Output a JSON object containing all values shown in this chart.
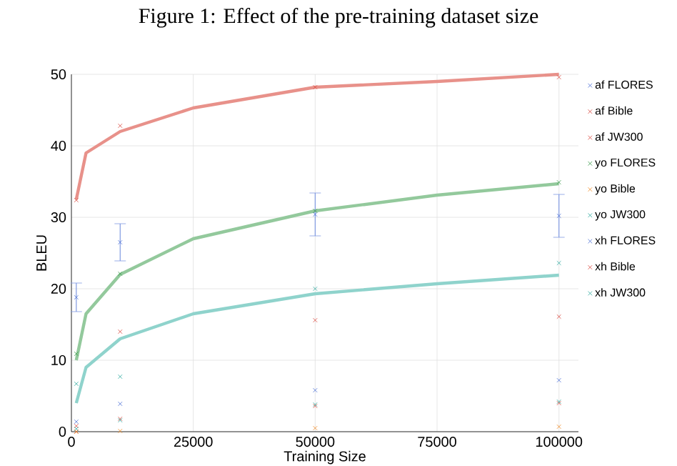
{
  "chart_data": {
    "type": "scatter",
    "title": "Figure 1: Effect of the pre-training dataset size",
    "xlabel": "Training Size",
    "ylabel": "BLEU",
    "xlim": [
      0,
      104000
    ],
    "ylim": [
      0,
      50
    ],
    "xticks": [
      0,
      25000,
      50000,
      75000,
      100000
    ],
    "yticks": [
      0,
      10,
      20,
      30,
      40,
      50
    ],
    "x": [
      1000,
      10000,
      50000,
      100000
    ],
    "grid": true,
    "legend": "right",
    "marker": "cross",
    "series": [
      {
        "name": "af FLORES",
        "color": "#4a6fd6",
        "values": [
          18.8,
          26.5,
          30.4,
          30.2
        ],
        "errors": [
          2,
          2.6,
          3,
          3
        ]
      },
      {
        "name": "af Bible",
        "color": "#d9463c",
        "values": [
          0,
          14.0,
          15.6,
          16.1
        ]
      },
      {
        "name": "af JW300",
        "color": "#d9463c",
        "values": [
          32.4,
          42.8,
          48.2,
          49.6
        ]
      },
      {
        "name": "yo FLORES",
        "color": "#3a9a4a",
        "values": [
          10.9,
          22.1,
          30.9,
          34.9
        ]
      },
      {
        "name": "yo Bible",
        "color": "#f08a24",
        "values": [
          0,
          0.1,
          0.5,
          0.7
        ]
      },
      {
        "name": "yo JW300",
        "color": "#2eaaa0",
        "values": [
          6.7,
          7.7,
          20.0,
          23.6
        ]
      },
      {
        "name": "xh FLORES",
        "color": "#4a6fd6",
        "values": [
          1.4,
          3.9,
          5.8,
          7.2
        ]
      },
      {
        "name": "xh Bible",
        "color": "#d9463c",
        "values": [
          0.8,
          1.8,
          3.6,
          4.0
        ]
      },
      {
        "name": "xh JW300",
        "color": "#2eaaa0",
        "values": [
          0.4,
          1.6,
          3.8,
          4.2
        ]
      },
      {
        "type": "line",
        "marker": "none",
        "color": "#e8918a",
        "x": [
          1000,
          3000,
          10000,
          25000,
          50000,
          75000,
          100000
        ],
        "values": [
          32.5,
          39,
          42,
          45.3,
          48.2,
          49,
          50
        ]
      },
      {
        "type": "line",
        "marker": "none",
        "color": "#93c99c",
        "x": [
          1000,
          3000,
          10000,
          25000,
          50000,
          75000,
          100000
        ],
        "values": [
          10,
          16.5,
          22,
          27,
          30.9,
          33.1,
          34.7
        ]
      },
      {
        "type": "line",
        "marker": "none",
        "color": "#8fd3cc",
        "x": [
          1000,
          3000,
          10000,
          25000,
          50000,
          75000,
          100000
        ],
        "values": [
          4,
          9,
          13,
          16.5,
          19.3,
          20.7,
          21.9
        ]
      }
    ]
  }
}
